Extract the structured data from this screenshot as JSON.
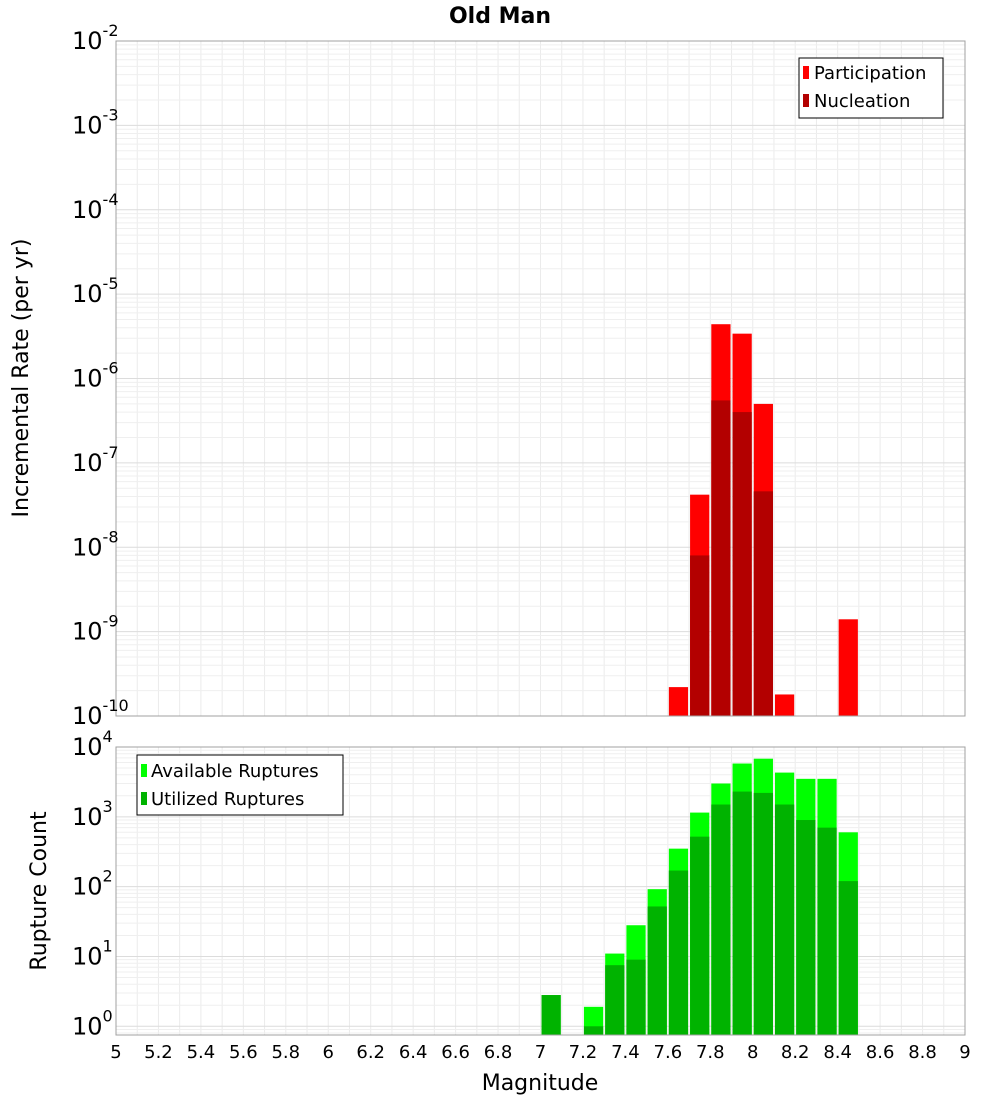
{
  "chart_data": [
    {
      "type": "bar",
      "title": "Old Man",
      "ylabel": "Incremental Rate (per yr)",
      "xlabel": "Magnitude",
      "x_range": [
        5,
        9
      ],
      "x_ticks": [
        "5",
        "5.2",
        "5.4",
        "5.6",
        "5.8",
        "6",
        "6.2",
        "6.4",
        "6.6",
        "6.8",
        "7",
        "7.2",
        "7.4",
        "7.6",
        "7.8",
        "8",
        "8.2",
        "8.4",
        "8.6",
        "8.8",
        "9"
      ],
      "y_scale": "log",
      "y_range": [
        1e-10,
        0.01
      ],
      "y_tick_exponents": [
        "-10",
        "-9",
        "-8",
        "-7",
        "-6",
        "-5",
        "-4",
        "-3",
        "-2"
      ],
      "grid": true,
      "legend_position": "top-right",
      "legend": [
        "Participation",
        "Nucleation"
      ],
      "colors": {
        "Participation": "#ff0000",
        "Nucleation": "#b30000"
      },
      "series": [
        {
          "name": "Participation",
          "x": [
            7.65,
            7.75,
            7.85,
            7.95,
            8.05,
            8.15,
            8.45
          ],
          "values": [
            2.2e-10,
            4.2e-08,
            4.4e-06,
            3.4e-06,
            5e-07,
            1.8e-10,
            1.4e-09
          ]
        },
        {
          "name": "Nucleation",
          "x": [
            7.75,
            7.85,
            7.95,
            8.05
          ],
          "values": [
            8e-09,
            5.5e-07,
            4e-07,
            4.6e-08
          ]
        }
      ]
    },
    {
      "type": "bar",
      "ylabel": "Rupture Count",
      "xlabel": "Magnitude",
      "x_range": [
        5,
        9
      ],
      "y_scale": "log",
      "y_range": [
        0.75,
        10000
      ],
      "y_tick_exponents": [
        "0",
        "1",
        "2",
        "3",
        "4"
      ],
      "grid": true,
      "legend_position": "top-left",
      "legend": [
        "Available Ruptures",
        "Utilized Ruptures"
      ],
      "colors": {
        "Available Ruptures": "#00ff00",
        "Utilized Ruptures": "#00b300"
      },
      "series": [
        {
          "name": "Available Ruptures",
          "x": [
            7.05,
            7.25,
            7.35,
            7.45,
            7.55,
            7.65,
            7.75,
            7.85,
            7.95,
            8.05,
            8.15,
            8.25,
            8.35,
            8.45
          ],
          "values": [
            2.8,
            1.9,
            11,
            28,
            92,
            350,
            1150,
            3000,
            5800,
            6800,
            4300,
            3500,
            3500,
            600
          ]
        },
        {
          "name": "Utilized Ruptures",
          "x": [
            7.05,
            7.25,
            7.35,
            7.45,
            7.55,
            7.65,
            7.75,
            7.85,
            7.95,
            8.05,
            8.15,
            8.25,
            8.35,
            8.45
          ],
          "values": [
            2.8,
            1.0,
            7.5,
            9,
            52,
            170,
            520,
            1500,
            2300,
            2200,
            1500,
            900,
            700,
            120
          ]
        }
      ]
    }
  ]
}
